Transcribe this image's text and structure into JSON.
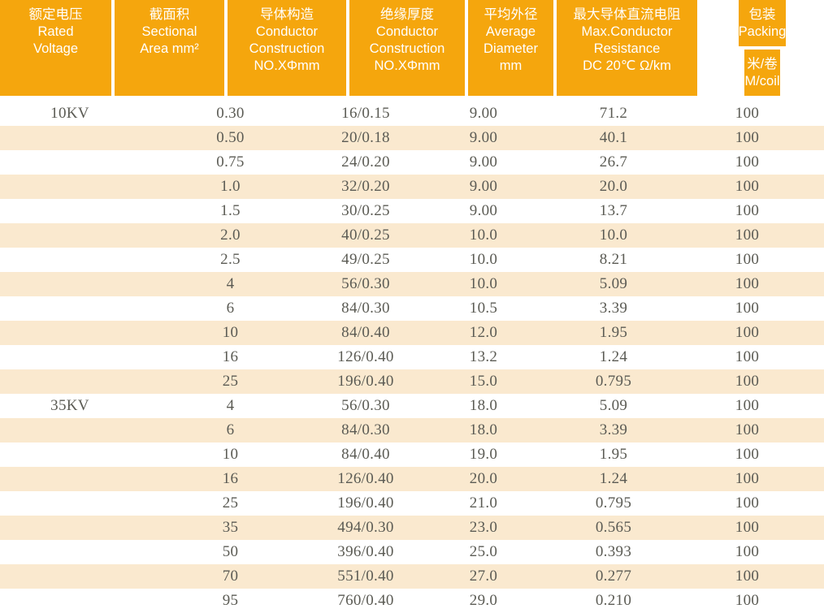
{
  "table": {
    "header": {
      "columns": [
        {
          "id": "rated-voltage",
          "lines": [
            "额定电压",
            "Rated",
            "Voltage"
          ]
        },
        {
          "id": "sectional-area",
          "lines": [
            "截面积",
            "Sectional",
            "Area mm²"
          ]
        },
        {
          "id": "conductor-construction",
          "lines": [
            "导体构造",
            "Conductor",
            "Construction",
            "NO.XΦmm"
          ]
        },
        {
          "id": "insulation-thickness",
          "lines": [
            "绝缘厚度",
            "Conductor",
            "Construction",
            "NO.XΦmm"
          ]
        },
        {
          "id": "average-diameter",
          "lines": [
            "平均外径",
            "Average",
            "Diameter",
            "mm"
          ]
        },
        {
          "id": "max-conductor-resistance",
          "lines": [
            "最大导体直流电阻",
            "Max.Conductor",
            "Resistance",
            "DC 20℃ Ω/km"
          ]
        }
      ],
      "packing": {
        "title_lines": [
          "包装",
          "Packing"
        ],
        "unit_lines": [
          "米/卷",
          "M/coil"
        ]
      }
    },
    "row_fields": [
      "voltage",
      "area",
      "conductor",
      "diameter",
      "resistance",
      "packing"
    ],
    "rows": [
      {
        "voltage": "10KV",
        "area": "0.30",
        "conductor": "16/0.15",
        "diameter": "9.00",
        "resistance": "71.2",
        "packing": "100"
      },
      {
        "voltage": "",
        "area": "0.50",
        "conductor": "20/0.18",
        "diameter": "9.00",
        "resistance": "40.1",
        "packing": "100"
      },
      {
        "voltage": "",
        "area": "0.75",
        "conductor": "24/0.20",
        "diameter": "9.00",
        "resistance": "26.7",
        "packing": "100"
      },
      {
        "voltage": "",
        "area": "1.0",
        "conductor": "32/0.20",
        "diameter": "9.00",
        "resistance": "20.0",
        "packing": "100"
      },
      {
        "voltage": "",
        "area": "1.5",
        "conductor": "30/0.25",
        "diameter": "9.00",
        "resistance": "13.7",
        "packing": "100"
      },
      {
        "voltage": "",
        "area": "2.0",
        "conductor": "40/0.25",
        "diameter": "10.0",
        "resistance": "10.0",
        "packing": "100"
      },
      {
        "voltage": "",
        "area": "2.5",
        "conductor": "49/0.25",
        "diameter": "10.0",
        "resistance": "8.21",
        "packing": "100"
      },
      {
        "voltage": "",
        "area": "4",
        "conductor": "56/0.30",
        "diameter": "10.0",
        "resistance": "5.09",
        "packing": "100"
      },
      {
        "voltage": "",
        "area": "6",
        "conductor": "84/0.30",
        "diameter": "10.5",
        "resistance": "3.39",
        "packing": "100"
      },
      {
        "voltage": "",
        "area": "10",
        "conductor": "84/0.40",
        "diameter": "12.0",
        "resistance": "1.95",
        "packing": "100"
      },
      {
        "voltage": "",
        "area": "16",
        "conductor": "126/0.40",
        "diameter": "13.2",
        "resistance": "1.24",
        "packing": "100"
      },
      {
        "voltage": "",
        "area": "25",
        "conductor": "196/0.40",
        "diameter": "15.0",
        "resistance": "0.795",
        "packing": "100"
      },
      {
        "voltage": "35KV",
        "area": "4",
        "conductor": "56/0.30",
        "diameter": "18.0",
        "resistance": "5.09",
        "packing": "100"
      },
      {
        "voltage": "",
        "area": "6",
        "conductor": "84/0.30",
        "diameter": "18.0",
        "resistance": "3.39",
        "packing": "100"
      },
      {
        "voltage": "",
        "area": "10",
        "conductor": "84/0.40",
        "diameter": "19.0",
        "resistance": "1.95",
        "packing": "100"
      },
      {
        "voltage": "",
        "area": "16",
        "conductor": "126/0.40",
        "diameter": "20.0",
        "resistance": "1.24",
        "packing": "100"
      },
      {
        "voltage": "",
        "area": "25",
        "conductor": "196/0.40",
        "diameter": "21.0",
        "resistance": "0.795",
        "packing": "100"
      },
      {
        "voltage": "",
        "area": "35",
        "conductor": "494/0.30",
        "diameter": "23.0",
        "resistance": "0.565",
        "packing": "100"
      },
      {
        "voltage": "",
        "area": "50",
        "conductor": "396/0.40",
        "diameter": "25.0",
        "resistance": "0.393",
        "packing": "100"
      },
      {
        "voltage": "",
        "area": "70",
        "conductor": "551/0.40",
        "diameter": "27.0",
        "resistance": "0.277",
        "packing": "100"
      },
      {
        "voltage": "",
        "area": "95",
        "conductor": "760/0.40",
        "diameter": "29.0",
        "resistance": "0.210",
        "packing": "100"
      }
    ]
  },
  "colors": {
    "header_bg": "#F5A60D",
    "row_alt_bg": "#FAE9CF",
    "header_text": "#FFFFFF",
    "data_text": "#5B5B54",
    "page_bg": "#FFFFFF"
  }
}
